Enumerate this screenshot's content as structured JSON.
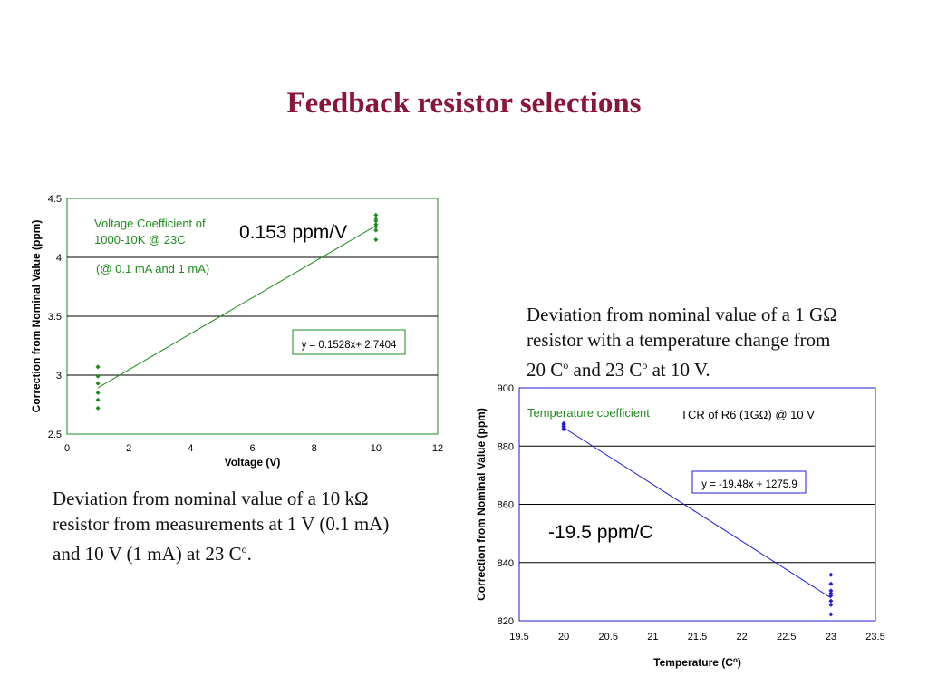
{
  "slide": {
    "title": "Feedback resistor selections"
  },
  "captions": {
    "left": {
      "lines": [
        "Deviation from nominal value of a 10 kΩ",
        "resistor from measurements at 1 V (0.1 mA)",
        "and 10 V (1 mA) at 23 C"
      ],
      "sup": "o",
      "tail": "."
    },
    "right": {
      "lines": [
        "Deviation from nominal value of a 1 GΩ",
        "resistor with a temperature change from"
      ],
      "line3": {
        "a": "20 C",
        "sup1": "o",
        "b": " and 23 C",
        "sup2": "o",
        "c": " at 10 V."
      }
    }
  },
  "colors": {
    "title": "#8b1539",
    "green": "#1f8a1f",
    "blue": "#1f1fd6",
    "grid": "#000000"
  },
  "chart_data": [
    {
      "type": "scatter",
      "xlabel": "Voltage (V)",
      "ylabel": "Correction from Nominal Value (ppm)",
      "xlim": [
        0,
        12
      ],
      "ylim": [
        2.5,
        4.5
      ],
      "xticks": [
        0,
        2,
        4,
        6,
        8,
        10,
        12
      ],
      "yticks": [
        2.5,
        3,
        3.5,
        4,
        4.5
      ],
      "grid": "horizontal",
      "point_color": "#1f8a1f",
      "series": [
        {
          "x": [
            1,
            1,
            1,
            1,
            1,
            1,
            1,
            10,
            10,
            10,
            10,
            10,
            10,
            10
          ],
          "y": [
            2.72,
            2.79,
            2.85,
            2.93,
            2.99,
            3.07,
            3.07,
            4.15,
            4.23,
            4.26,
            4.28,
            4.31,
            4.33,
            4.36
          ]
        }
      ],
      "trendline": {
        "slope": 0.1528,
        "intercept": 2.7404,
        "x_range": [
          1,
          10
        ]
      },
      "annotations": {
        "equation": "y = 0.1528x+ 2.7404",
        "label_line1": "Voltage Coefficient of",
        "label_line2": "1000-10K @ 23C",
        "label_line3": "(@ 0.1 mA  and 1 mA)",
        "slope_text": "0.153 ppm/V"
      }
    },
    {
      "type": "scatter",
      "xlabel": "Temperature (C",
      "xlabel_sup": "o",
      "xlabel_tail": ")",
      "ylabel": "Correction from Nominal Value (ppm)",
      "xlim": [
        19.5,
        23.5
      ],
      "ylim": [
        820,
        900
      ],
      "xticks": [
        19.5,
        20,
        20.5,
        21,
        21.5,
        22,
        22.5,
        23,
        23.5
      ],
      "yticks": [
        820,
        840,
        860,
        880,
        900
      ],
      "grid": "horizontal",
      "point_color": "#1f1fd6",
      "series": [
        {
          "x": [
            20,
            20,
            20,
            20,
            20,
            23,
            23,
            23,
            23,
            23,
            23,
            23,
            23
          ],
          "y": [
            885.8,
            886.3,
            886.8,
            887.3,
            887.8,
            822.2,
            825.5,
            826.8,
            828.6,
            829.4,
            830.3,
            832.7,
            835.8
          ]
        }
      ],
      "trendline": {
        "slope": -19.48,
        "intercept": 1275.9,
        "x_range": [
          20,
          23
        ]
      },
      "annotations": {
        "equation": "y = -19.48x + 1275.9",
        "label": "Temperature coefficient",
        "label2": "TCR of R6 (1GΩ) @ 10 V",
        "slope_text": "-19.5 ppm/C"
      }
    }
  ]
}
